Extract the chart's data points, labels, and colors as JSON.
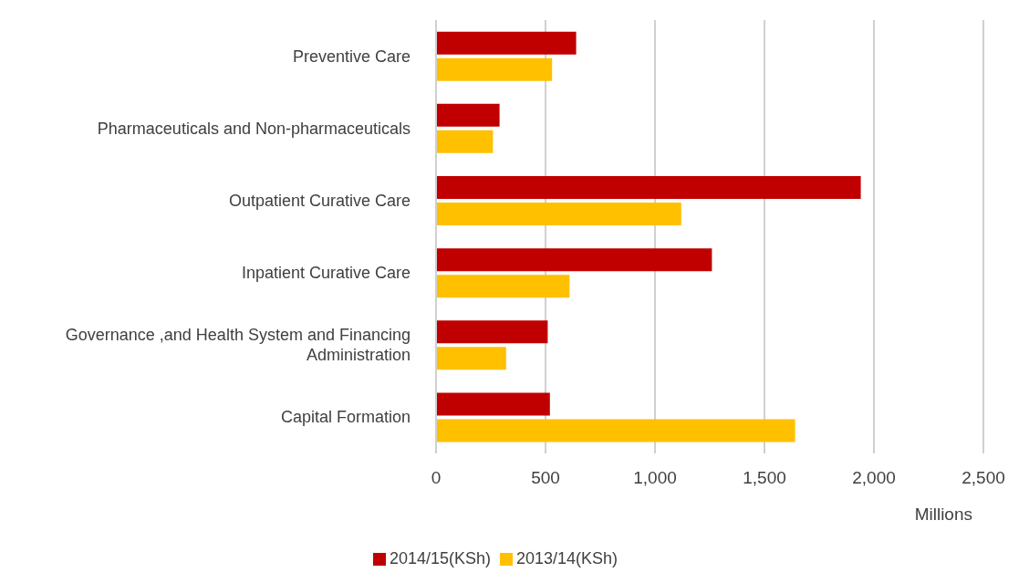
{
  "chart_data": {
    "type": "bar",
    "orientation": "horizontal",
    "xlabel": "Millions",
    "categories": [
      "Preventive Care",
      "Pharmaceuticals and Non-pharmaceuticals",
      "Outpatient Curative Care",
      "Inpatient Curative Care",
      "Governance ,and Health System and Financing Administration",
      "Capital Formation"
    ],
    "series": [
      {
        "name": "2014/15(KSh)",
        "color": "#c00000",
        "values": [
          640,
          290,
          1940,
          1260,
          510,
          520
        ]
      },
      {
        "name": "2013/14(KSh)",
        "color": "#ffc000",
        "values": [
          530,
          260,
          1120,
          610,
          320,
          1640
        ]
      }
    ],
    "xlim": [
      0,
      2500
    ],
    "xticks": [
      0,
      {
        "value": 500,
        "label": "500"
      },
      {
        "value": 1000,
        "label": "1,000"
      },
      {
        "value": 1500,
        "label": "1,500"
      },
      {
        "value": 2000,
        "label": "2,000"
      },
      {
        "value": 2500,
        "label": "2,500"
      }
    ],
    "grid": "x",
    "legend": "bottom"
  }
}
